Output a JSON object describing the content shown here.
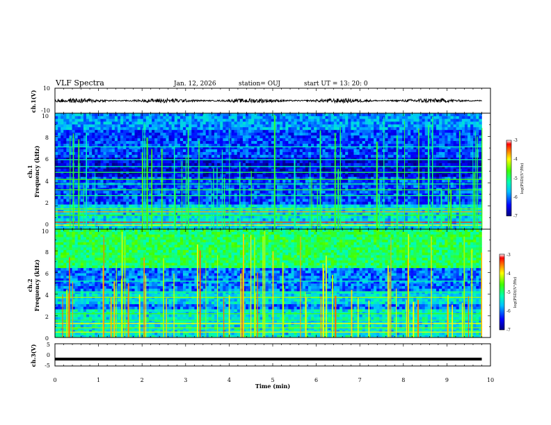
{
  "header": {
    "title": "VLF Spectra",
    "date": "Jan. 12, 2026",
    "station": "station= OUJ",
    "start": "start  UT  =  13: 20: 0"
  },
  "chart_data": [
    {
      "type": "line",
      "name": "ch1 waveform",
      "ylabel": "ch.1(V)",
      "ylim": [
        -10,
        10
      ],
      "yticks": [
        "10",
        "-10"
      ],
      "xlim": [
        0,
        10
      ],
      "baseline": 0,
      "color": "#000000"
    },
    {
      "type": "heatmap",
      "name": "ch1 spectrogram",
      "ylabel_1": "ch.1",
      "ylabel_2": "Frequency  (kHz)",
      "ylim": [
        0,
        10
      ],
      "yticks": [
        "0",
        "2",
        "4",
        "6",
        "8",
        "10"
      ],
      "xlim": [
        0,
        9.8
      ],
      "background_level": -6.2,
      "colorbar": {
        "label": "log(PSD)(V²/Hz)",
        "min": -7,
        "max": -3,
        "ticks": [
          "-3",
          "-4",
          "-5",
          "-6",
          "-7"
        ]
      }
    },
    {
      "type": "heatmap",
      "name": "ch2 spectrogram",
      "ylabel_1": "ch.2",
      "ylabel_2": "Frequency  (kHz)",
      "ylim": [
        0,
        10
      ],
      "yticks": [
        "0",
        "2",
        "4",
        "6",
        "8",
        "10"
      ],
      "xlim": [
        0,
        9.8
      ],
      "high_band_level": -4.9,
      "colorbar": {
        "label": "log(PSD)(V²/Hz)",
        "min": -7,
        "max": -3,
        "ticks": [
          "-3",
          "-4",
          "-5",
          "-6",
          "-7"
        ]
      }
    },
    {
      "type": "line",
      "name": "ch3 waveform",
      "ylabel": "ch.3(V)",
      "ylim": [
        -5,
        5
      ],
      "yticks": [
        "5",
        "0",
        "-5"
      ],
      "xlim": [
        0,
        9.8
      ],
      "value": -1.9,
      "color": "#000000"
    },
    {
      "type": "axis",
      "name": "time axis",
      "xlabel": "Time  (min)",
      "xlim": [
        0,
        10
      ],
      "xticks": [
        "0",
        "1",
        "2",
        "3",
        "4",
        "5",
        "6",
        "7",
        "8",
        "9",
        "10"
      ]
    }
  ]
}
